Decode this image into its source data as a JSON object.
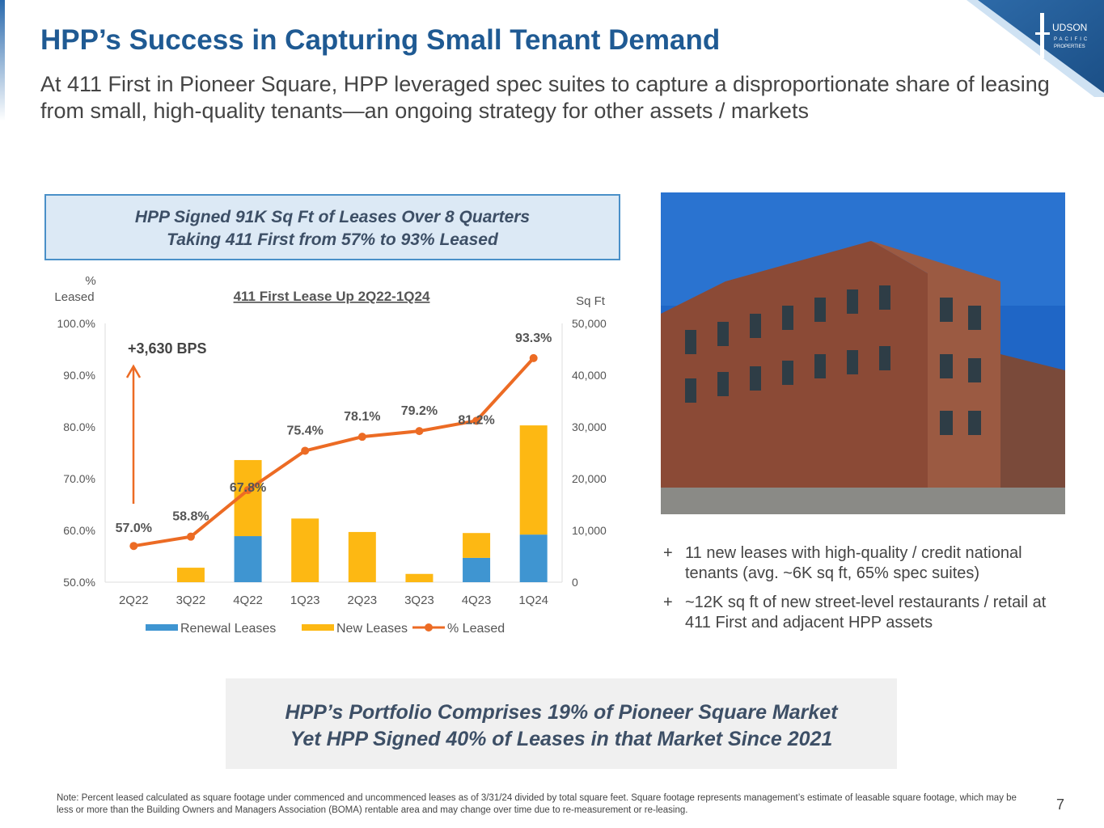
{
  "header": {
    "title": "HPP’s Success in Capturing Small Tenant Demand",
    "subtitle": "At 411 First in Pioneer Square, HPP leveraged spec suites to capture a disproportionate share of leasing from small, high-quality tenants—an ongoing strategy for other assets / markets",
    "logo_text": "HUDSON PACIFIC PROPERTIES"
  },
  "callout": {
    "line1": "HPP Signed 91K Sq Ft of Leases Over 8 Quarters",
    "line2": "Taking 411 First from 57% to 93% Leased"
  },
  "chart_data": {
    "type": "bar",
    "title": "411 First Lease Up 2Q22-1Q24",
    "ylabel": "% Leased",
    "y2label": "Sq Ft",
    "categories": [
      "2Q22",
      "3Q22",
      "4Q22",
      "1Q23",
      "2Q23",
      "3Q23",
      "4Q23",
      "1Q24"
    ],
    "ylim": [
      50,
      100
    ],
    "yticks": [
      "50.0%",
      "60.0%",
      "70.0%",
      "80.0%",
      "90.0%",
      "100.0%"
    ],
    "y2lim": [
      0,
      50000
    ],
    "y2ticks": [
      "0",
      "10,000",
      "20,000",
      "30,000",
      "40,000",
      "50,000"
    ],
    "series": [
      {
        "name": "Renewal Leases",
        "type": "bar",
        "axis": "right",
        "color": "#3f95d1",
        "values": [
          0,
          0,
          8900,
          0,
          0,
          0,
          4700,
          9200
        ]
      },
      {
        "name": "New Leases",
        "type": "bar",
        "axis": "right",
        "color": "#fdb813",
        "values": [
          0,
          2800,
          14700,
          12300,
          9700,
          1600,
          4800,
          21100
        ]
      },
      {
        "name": "% Leased",
        "type": "line",
        "axis": "left",
        "color": "#ec6b24",
        "values": [
          57.0,
          58.8,
          67.8,
          75.4,
          78.1,
          79.2,
          81.2,
          93.3
        ],
        "labels": [
          "57.0%",
          "58.8%",
          "67.8%",
          "75.4%",
          "78.1%",
          "79.2%",
          "81.2%",
          "93.3%"
        ]
      }
    ],
    "annotation": "+3,630 BPS",
    "legend": "bottom"
  },
  "bullets": [
    {
      "marker": "+",
      "text": "11 new leases with high-quality / credit national tenants (avg. ~6K sq ft, 65% spec suites)"
    },
    {
      "marker": "+",
      "text": "~12K sq ft of new street-level restaurants / retail at 411 First and adjacent HPP assets"
    }
  ],
  "bottom": {
    "line1": "HPP’s Portfolio Comprises 19% of Pioneer Square Market",
    "line2": "Yet HPP Signed 40% of Leases in that Market Since 2021"
  },
  "note": "Note: Percent leased calculated as square footage under commenced and uncommenced leases as of 3/31/24 divided by total square feet. Square footage represents management’s estimate of leasable square footage, which may be less or more than the Building Owners and Managers Association (BOMA) rentable area and may change over time due to re-measurement or re-leasing.",
  "page_number": "7"
}
